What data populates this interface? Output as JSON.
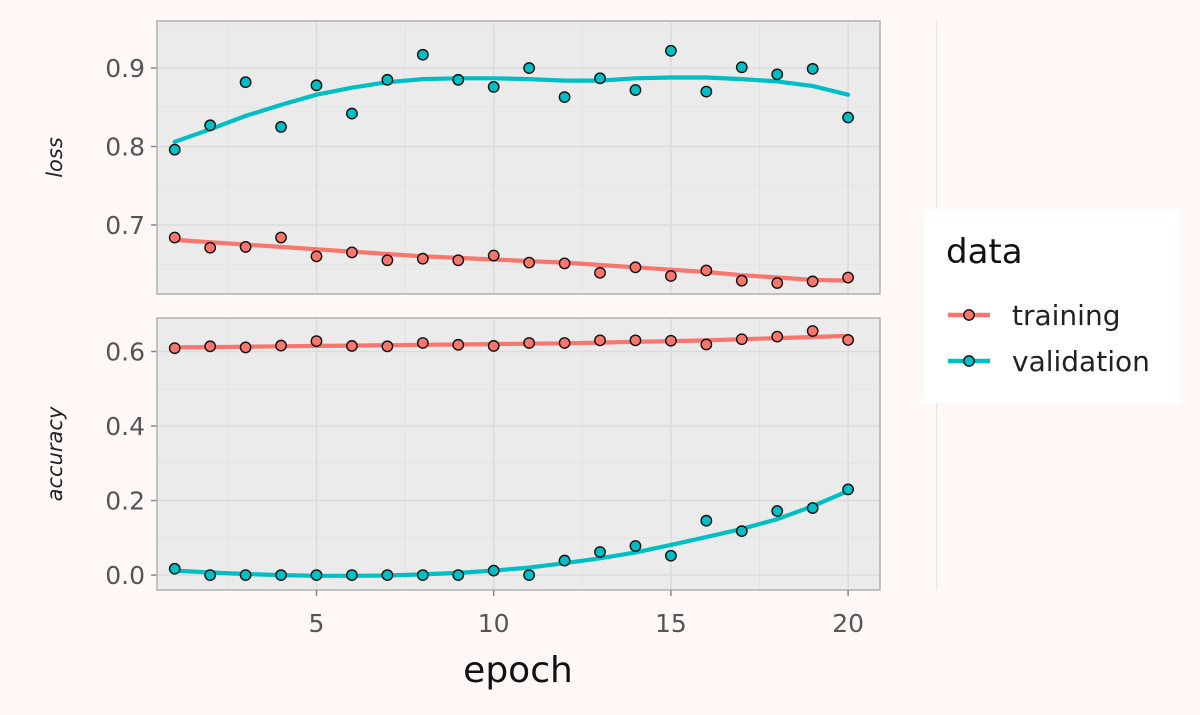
{
  "chart_data": {
    "type": "scatter",
    "x_label": "epoch",
    "x_ticks": [
      5,
      10,
      15,
      20
    ],
    "xlim": [
      0.5,
      20.9
    ],
    "legend": {
      "title": "data",
      "position": "right",
      "entries": [
        {
          "name": "training",
          "color": "#F8766D"
        },
        {
          "name": "validation",
          "color": "#00BFC4"
        }
      ]
    },
    "panels": [
      {
        "id": "loss",
        "label": "loss",
        "ylim": [
          0.612,
          0.96
        ],
        "y_ticks": [
          0.7,
          0.8,
          0.9
        ],
        "y_tick_labels": [
          "0.7",
          "0.8",
          "0.9"
        ],
        "series": [
          {
            "name": "training",
            "color": "#F8766D",
            "x": [
              1,
              2,
              3,
              4,
              5,
              6,
              7,
              8,
              9,
              10,
              11,
              12,
              13,
              14,
              15,
              16,
              17,
              18,
              19,
              20
            ],
            "y": [
              0.684,
              0.671,
              0.672,
              0.684,
              0.66,
              0.665,
              0.655,
              0.657,
              0.655,
              0.661,
              0.652,
              0.651,
              0.639,
              0.646,
              0.635,
              0.642,
              0.629,
              0.626,
              0.628,
              0.633
            ],
            "smooth": [
              0.681,
              0.678,
              0.675,
              0.672,
              0.669,
              0.666,
              0.663,
              0.66,
              0.658,
              0.656,
              0.654,
              0.652,
              0.649,
              0.646,
              0.643,
              0.64,
              0.636,
              0.633,
              0.63,
              0.629
            ]
          },
          {
            "name": "validation",
            "color": "#00BFC4",
            "x": [
              1,
              2,
              3,
              4,
              5,
              6,
              7,
              8,
              9,
              10,
              11,
              12,
              13,
              14,
              15,
              16,
              17,
              18,
              19,
              20
            ],
            "y": [
              0.796,
              0.827,
              0.882,
              0.825,
              0.878,
              0.842,
              0.885,
              0.917,
              0.885,
              0.876,
              0.9,
              0.863,
              0.887,
              0.872,
              0.922,
              0.87,
              0.901,
              0.892,
              0.899,
              0.837
            ],
            "smooth": [
              0.806,
              0.822,
              0.839,
              0.853,
              0.866,
              0.875,
              0.882,
              0.886,
              0.887,
              0.887,
              0.886,
              0.884,
              0.884,
              0.887,
              0.888,
              0.888,
              0.886,
              0.883,
              0.877,
              0.866
            ]
          }
        ]
      },
      {
        "id": "accuracy",
        "label": "accuracy",
        "ylim": [
          -0.04,
          0.69
        ],
        "y_ticks": [
          0.0,
          0.2,
          0.4,
          0.6
        ],
        "y_tick_labels": [
          "0.0",
          "0.2",
          "0.4",
          "0.6"
        ],
        "series": [
          {
            "name": "training",
            "color": "#F8766D",
            "x": [
              1,
              2,
              3,
              4,
              5,
              6,
              7,
              8,
              9,
              10,
              11,
              12,
              13,
              14,
              15,
              16,
              17,
              18,
              19,
              20
            ],
            "y": [
              0.609,
              0.614,
              0.611,
              0.616,
              0.628,
              0.615,
              0.614,
              0.623,
              0.618,
              0.615,
              0.623,
              0.623,
              0.63,
              0.63,
              0.629,
              0.619,
              0.633,
              0.64,
              0.655,
              0.631
            ],
            "smooth": [
              0.611,
              0.612,
              0.613,
              0.614,
              0.615,
              0.616,
              0.617,
              0.618,
              0.619,
              0.62,
              0.621,
              0.622,
              0.624,
              0.626,
              0.628,
              0.63,
              0.633,
              0.636,
              0.639,
              0.642
            ]
          },
          {
            "name": "validation",
            "color": "#00BFC4",
            "x": [
              1,
              2,
              3,
              4,
              5,
              6,
              7,
              8,
              9,
              10,
              11,
              12,
              13,
              14,
              15,
              16,
              17,
              18,
              19,
              20
            ],
            "y": [
              0.017,
              0.0,
              0.0,
              0.0,
              0.0,
              0.0,
              0.0,
              0.0,
              0.0,
              0.012,
              0.0,
              0.039,
              0.062,
              0.078,
              0.052,
              0.146,
              0.118,
              0.172,
              0.18,
              0.23
            ],
            "smooth": [
              0.012,
              0.007,
              0.003,
              0.0,
              -0.002,
              -0.002,
              -0.001,
              0.002,
              0.006,
              0.012,
              0.02,
              0.032,
              0.045,
              0.061,
              0.081,
              0.102,
              0.124,
              0.15,
              0.185,
              0.226
            ]
          }
        ]
      }
    ]
  }
}
